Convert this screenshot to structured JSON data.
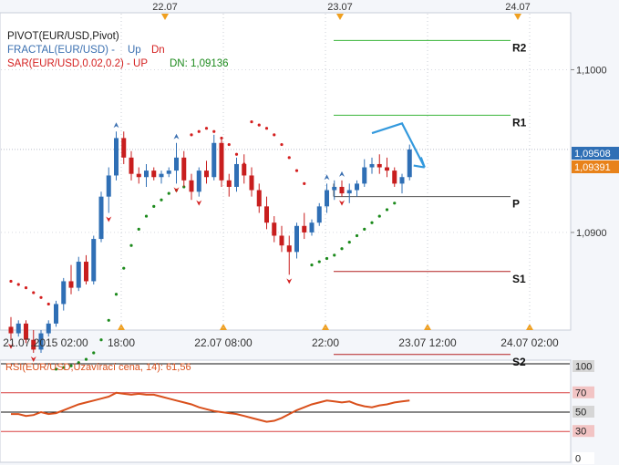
{
  "chart_data": [
    {
      "type": "candlestick",
      "symbol": "EUR/USD",
      "indicator_labels": [
        {
          "text": "PIVOT(EUR/USD,Pivot)",
          "color": "#1a1a1a"
        },
        {
          "text": "FRACTAL(EUR/USD) -",
          "color": "#3a6fb0"
        },
        {
          "text": "Up",
          "color": "#3a6fb0"
        },
        {
          "text": "Dn",
          "color": "#d42020"
        },
        {
          "text": "SAR(EUR/USD,0.02,0.2) - UP",
          "color": "#d42020"
        },
        {
          "text": "DN: 1,09136",
          "color": "#1c8a1c"
        }
      ],
      "top_time_markers": [
        "22.07",
        "23.07",
        "24.07"
      ],
      "x_tick_labels": [
        "21.07.2015 02:00",
        "18:00",
        "22.07 08:00",
        "22:00",
        "23.07 12:00",
        "24.07 02:00"
      ],
      "y_tick_labels": [
        "1,1000",
        "1,0900"
      ],
      "ylim": [
        1.084,
        1.1035
      ],
      "price_tags": [
        {
          "value": "1,09508",
          "color": "#2f6fb5"
        },
        {
          "value": "1,09391",
          "color": "#e8821a"
        }
      ],
      "pivot_levels": [
        {
          "name": "R2",
          "value": 1.1018,
          "color": "#3cb43c"
        },
        {
          "name": "R1",
          "value": 1.0972,
          "color": "#3cb43c"
        },
        {
          "name": "P",
          "value": 1.0922,
          "color": "#555555"
        },
        {
          "name": "S1",
          "value": 1.0876,
          "color": "#b32020"
        },
        {
          "name": "S2",
          "value": 1.0825,
          "color": "#b32020"
        }
      ],
      "candles": [
        {
          "o": 1.0842,
          "h": 1.0848,
          "l": 1.0834,
          "c": 1.0838
        },
        {
          "o": 1.0838,
          "h": 1.0846,
          "l": 1.0836,
          "c": 1.0844
        },
        {
          "o": 1.0844,
          "h": 1.0846,
          "l": 1.0832,
          "c": 1.0834
        },
        {
          "o": 1.0834,
          "h": 1.084,
          "l": 1.0826,
          "c": 1.0828
        },
        {
          "o": 1.0828,
          "h": 1.084,
          "l": 1.0826,
          "c": 1.0838
        },
        {
          "o": 1.0838,
          "h": 1.0846,
          "l": 1.0836,
          "c": 1.0844
        },
        {
          "o": 1.0844,
          "h": 1.0858,
          "l": 1.0842,
          "c": 1.0856
        },
        {
          "o": 1.0856,
          "h": 1.0872,
          "l": 1.0852,
          "c": 1.087
        },
        {
          "o": 1.087,
          "h": 1.088,
          "l": 1.0862,
          "c": 1.0866
        },
        {
          "o": 1.0866,
          "h": 1.0885,
          "l": 1.0864,
          "c": 1.0882
        },
        {
          "o": 1.0882,
          "h": 1.0886,
          "l": 1.0868,
          "c": 1.087
        },
        {
          "o": 1.087,
          "h": 1.0898,
          "l": 1.0868,
          "c": 1.0896
        },
        {
          "o": 1.0896,
          "h": 1.0925,
          "l": 1.0894,
          "c": 1.0922
        },
        {
          "o": 1.0922,
          "h": 1.094,
          "l": 1.0912,
          "c": 1.0935
        },
        {
          "o": 1.0935,
          "h": 1.0962,
          "l": 1.0932,
          "c": 1.0958
        },
        {
          "o": 1.0958,
          "h": 1.0962,
          "l": 1.0942,
          "c": 1.0946
        },
        {
          "o": 1.0946,
          "h": 1.095,
          "l": 1.0932,
          "c": 1.0936
        },
        {
          "o": 1.0936,
          "h": 1.094,
          "l": 1.093,
          "c": 1.0934
        },
        {
          "o": 1.0934,
          "h": 1.0942,
          "l": 1.0928,
          "c": 1.0938
        },
        {
          "o": 1.0938,
          "h": 1.094,
          "l": 1.0932,
          "c": 1.0934
        },
        {
          "o": 1.0934,
          "h": 1.0938,
          "l": 1.093,
          "c": 1.0936
        },
        {
          "o": 1.0936,
          "h": 1.094,
          "l": 1.0934,
          "c": 1.0938
        },
        {
          "o": 1.0938,
          "h": 1.0955,
          "l": 1.093,
          "c": 1.0946
        },
        {
          "o": 1.0946,
          "h": 1.095,
          "l": 1.0928,
          "c": 1.0932
        },
        {
          "o": 1.0932,
          "h": 1.0936,
          "l": 1.092,
          "c": 1.0925
        },
        {
          "o": 1.0925,
          "h": 1.094,
          "l": 1.0922,
          "c": 1.0938
        },
        {
          "o": 1.0938,
          "h": 1.0944,
          "l": 1.093,
          "c": 1.0934
        },
        {
          "o": 1.0934,
          "h": 1.096,
          "l": 1.0932,
          "c": 1.0955
        },
        {
          "o": 1.0955,
          "h": 1.0958,
          "l": 1.0928,
          "c": 1.0932
        },
        {
          "o": 1.0932,
          "h": 1.0936,
          "l": 1.0922,
          "c": 1.0928
        },
        {
          "o": 1.0928,
          "h": 1.0946,
          "l": 1.0925,
          "c": 1.0942
        },
        {
          "o": 1.0942,
          "h": 1.0948,
          "l": 1.093,
          "c": 1.0935
        },
        {
          "o": 1.0935,
          "h": 1.094,
          "l": 1.0922,
          "c": 1.0926
        },
        {
          "o": 1.0926,
          "h": 1.093,
          "l": 1.0912,
          "c": 1.0916
        },
        {
          "o": 1.0916,
          "h": 1.0922,
          "l": 1.0902,
          "c": 1.0906
        },
        {
          "o": 1.0906,
          "h": 1.091,
          "l": 1.0894,
          "c": 1.0898
        },
        {
          "o": 1.0898,
          "h": 1.0904,
          "l": 1.0888,
          "c": 1.0892
        },
        {
          "o": 1.0892,
          "h": 1.0898,
          "l": 1.0874,
          "c": 1.0888
        },
        {
          "o": 1.0888,
          "h": 1.0906,
          "l": 1.0884,
          "c": 1.0904
        },
        {
          "o": 1.0904,
          "h": 1.0912,
          "l": 1.0896,
          "c": 1.09
        },
        {
          "o": 1.09,
          "h": 1.0908,
          "l": 1.0898,
          "c": 1.0906
        },
        {
          "o": 1.0906,
          "h": 1.0918,
          "l": 1.0904,
          "c": 1.0916
        },
        {
          "o": 1.0916,
          "h": 1.093,
          "l": 1.0912,
          "c": 1.0926
        },
        {
          "o": 1.0926,
          "h": 1.0932,
          "l": 1.092,
          "c": 1.0928
        },
        {
          "o": 1.0928,
          "h": 1.0932,
          "l": 1.0922,
          "c": 1.0924
        },
        {
          "o": 1.0924,
          "h": 1.093,
          "l": 1.0918,
          "c": 1.0926
        },
        {
          "o": 1.0926,
          "h": 1.0932,
          "l": 1.0922,
          "c": 1.093
        },
        {
          "o": 1.093,
          "h": 1.0945,
          "l": 1.0928,
          "c": 1.094
        },
        {
          "o": 1.094,
          "h": 1.0946,
          "l": 1.0936,
          "c": 1.0942
        },
        {
          "o": 1.0942,
          "h": 1.0948,
          "l": 1.0936,
          "c": 1.094
        },
        {
          "o": 1.094,
          "h": 1.0946,
          "l": 1.0934,
          "c": 1.0938
        },
        {
          "o": 1.0938,
          "h": 1.094,
          "l": 1.0928,
          "c": 1.093
        },
        {
          "o": 1.093,
          "h": 1.0936,
          "l": 1.0924,
          "c": 1.0934
        },
        {
          "o": 1.0934,
          "h": 1.0954,
          "l": 1.0932,
          "c": 1.0951
        }
      ],
      "sar_points": [
        [
          0,
          1.087
        ],
        [
          1,
          1.0868
        ],
        [
          2,
          1.0866
        ],
        [
          3,
          1.0863
        ],
        [
          4,
          1.086
        ],
        [
          5,
          1.0856
        ],
        [
          6,
          1.085
        ],
        [
          6,
          1.0816
        ],
        [
          7,
          1.0817
        ],
        [
          8,
          1.0818
        ],
        [
          9,
          1.082
        ],
        [
          10,
          1.0822
        ],
        [
          11,
          1.0826
        ],
        [
          12,
          1.0834
        ],
        [
          13,
          1.0846
        ],
        [
          14,
          1.0862
        ],
        [
          15,
          1.0878
        ],
        [
          16,
          1.0892
        ],
        [
          17,
          1.0902
        ],
        [
          18,
          1.091
        ],
        [
          19,
          1.0916
        ],
        [
          20,
          1.092
        ],
        [
          21,
          1.0924
        ],
        [
          22,
          1.0926
        ],
        [
          23,
          1.0928
        ],
        [
          24,
          1.096
        ],
        [
          25,
          1.0962
        ],
        [
          26,
          1.0964
        ],
        [
          27,
          1.0962
        ],
        [
          28,
          1.0958
        ],
        [
          29,
          1.0954
        ],
        [
          30,
          1.0948
        ],
        [
          31,
          1.0942
        ],
        [
          32,
          1.0968
        ],
        [
          33,
          1.0966
        ],
        [
          34,
          1.0964
        ],
        [
          35,
          1.096
        ],
        [
          36,
          1.0954
        ],
        [
          37,
          1.0946
        ],
        [
          38,
          1.0938
        ],
        [
          39,
          1.093
        ],
        [
          40,
          1.088
        ],
        [
          41,
          1.0882
        ],
        [
          42,
          1.0884
        ],
        [
          43,
          1.0886
        ],
        [
          44,
          1.089
        ],
        [
          45,
          1.0894
        ],
        [
          46,
          1.0898
        ],
        [
          47,
          1.0902
        ],
        [
          48,
          1.0906
        ],
        [
          49,
          1.091
        ],
        [
          50,
          1.0914
        ],
        [
          51,
          1.0918
        ]
      ],
      "fractals_up": [
        14,
        22,
        42,
        44
      ],
      "fractals_down": [
        0,
        3,
        13,
        22,
        25,
        37,
        44
      ],
      "forecast_arrow": [
        [
          48,
          1.0961
        ],
        [
          52,
          1.0967
        ],
        [
          55,
          1.094
        ]
      ]
    },
    {
      "type": "line",
      "label": "RSI(EUR/USD,Uzavírací cena, 14): 61,56",
      "ylim": [
        0,
        100
      ],
      "y_tick_labels": [
        "100",
        "70",
        "50",
        "30",
        "0"
      ],
      "levels": [
        100,
        70,
        50,
        30
      ],
      "values": [
        48,
        48,
        46,
        47,
        50,
        48,
        49,
        52,
        55,
        58,
        60,
        62,
        64,
        66,
        70,
        69,
        68,
        69,
        68,
        68,
        66,
        64,
        62,
        60,
        58,
        55,
        53,
        51,
        50,
        49,
        48,
        46,
        44,
        42,
        40,
        41,
        44,
        48,
        52,
        55,
        58,
        60,
        62,
        61,
        60,
        61,
        58,
        56,
        55,
        57,
        58,
        60,
        61,
        62
      ]
    }
  ]
}
